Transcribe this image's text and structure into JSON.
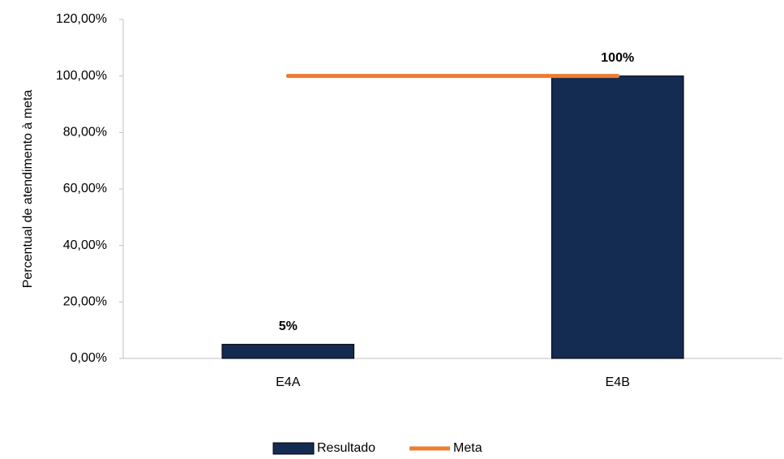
{
  "chart_data": {
    "type": "bar_line",
    "y_label": "Percentual de atendimento à meta",
    "categories": [
      "E4A",
      "E4B"
    ],
    "series": [
      {
        "name": "Resultado",
        "type": "bar",
        "color": "#142b52",
        "values": [
          5,
          100
        ],
        "value_labels": [
          "5%",
          "100%"
        ]
      },
      {
        "name": "Meta",
        "type": "line",
        "color": "#ed7d31",
        "values": [
          100,
          100
        ]
      }
    ],
    "ylim": [
      0,
      120
    ],
    "yticks": [
      {
        "value": 0,
        "label": "0,00%"
      },
      {
        "value": 20,
        "label": "20,00%"
      },
      {
        "value": 40,
        "label": "40,00%"
      },
      {
        "value": 60,
        "label": "60,00%"
      },
      {
        "value": 80,
        "label": "80,00%"
      },
      {
        "value": 100,
        "label": "100,00%"
      },
      {
        "value": 120,
        "label": "120,00%"
      }
    ],
    "grid": false,
    "legend": "bottom"
  }
}
